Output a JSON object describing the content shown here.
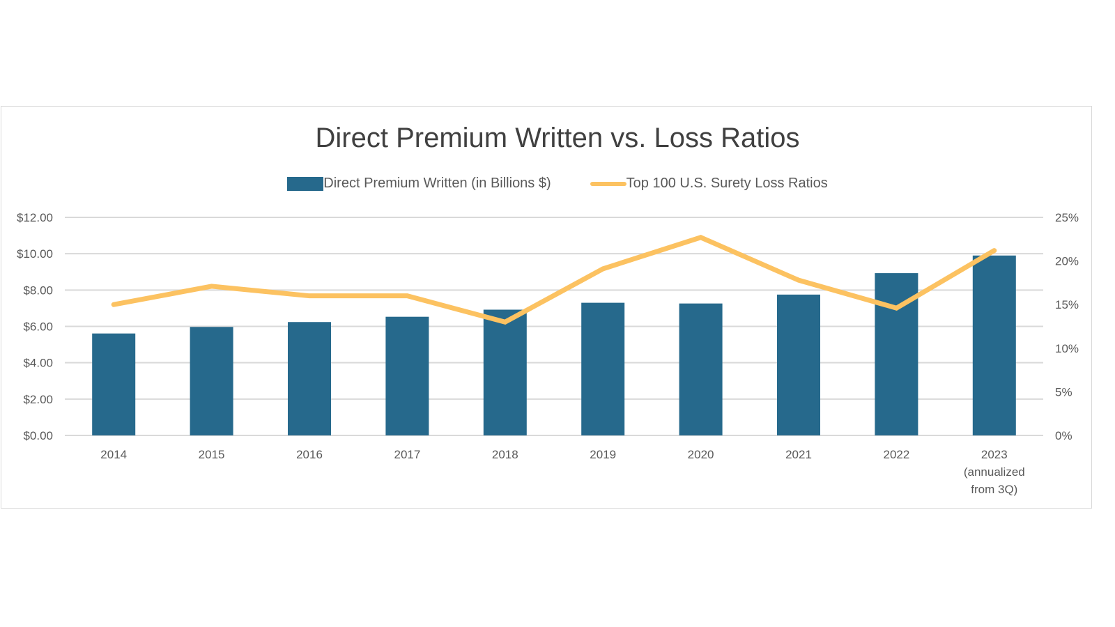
{
  "chart_data": {
    "type": "bar+line",
    "title": "Direct Premium Written vs. Loss Ratios",
    "categories": [
      "2014",
      "2015",
      "2016",
      "2017",
      "2018",
      "2019",
      "2020",
      "2021",
      "2022",
      "2023 (annualized from 3Q)"
    ],
    "category_label_lines": [
      [
        "2014"
      ],
      [
        "2015"
      ],
      [
        "2016"
      ],
      [
        "2017"
      ],
      [
        "2018"
      ],
      [
        "2019"
      ],
      [
        "2020"
      ],
      [
        "2021"
      ],
      [
        "2022"
      ],
      [
        "2023",
        "(annualized",
        "from 3Q)"
      ]
    ],
    "series": [
      {
        "name": "Direct Premium Written (in Billions $)",
        "type": "bar",
        "axis": "left",
        "color": "#26698c",
        "values": [
          5.61,
          5.97,
          6.24,
          6.53,
          6.92,
          7.3,
          7.26,
          7.75,
          8.93,
          9.9
        ]
      },
      {
        "name": "Top 100 U.S. Surety Loss Ratios",
        "type": "line",
        "axis": "right",
        "color": "#fcc261",
        "values": [
          15.0,
          17.1,
          16.0,
          16.0,
          13.0,
          19.1,
          22.7,
          17.8,
          14.6,
          21.2
        ]
      }
    ],
    "y_left": {
      "ylim": [
        0,
        12
      ],
      "ticks": [
        "$0.00",
        "$2.00",
        "$4.00",
        "$6.00",
        "$8.00",
        "$10.00",
        "$12.00"
      ]
    },
    "y_right": {
      "ylim": [
        0,
        25
      ],
      "ticks": [
        "0%",
        "5%",
        "10%",
        "15%",
        "20%",
        "25%"
      ]
    },
    "grid": true,
    "legend": "top"
  }
}
